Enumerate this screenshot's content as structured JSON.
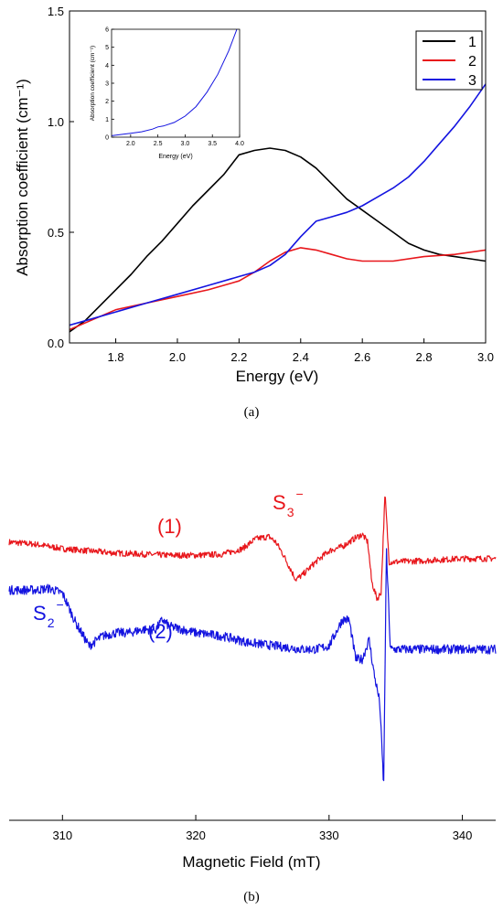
{
  "colors": {
    "series1": "#000000",
    "series2": "#e8161b",
    "series3": "#1414e0"
  },
  "chart_data": [
    {
      "type": "line",
      "panel_label": "(a)",
      "xlabel": "Energy (eV)",
      "ylabel": "Absorption coefficient (cm⁻¹)",
      "xlim": [
        1.65,
        3.0
      ],
      "ylim": [
        0,
        1.5
      ],
      "xticks": [
        "1.8",
        "2.0",
        "2.2",
        "2.4",
        "2.6",
        "2.8",
        "3.0"
      ],
      "yticks": [
        "0.0",
        "0.5",
        "1.0",
        "1.5"
      ],
      "legend": {
        "position": "top-right",
        "entries": [
          "1",
          "2",
          "3"
        ]
      },
      "series": [
        {
          "name": "1",
          "color": "#000000",
          "x": [
            1.65,
            1.7,
            1.75,
            1.8,
            1.85,
            1.9,
            1.95,
            2.0,
            2.05,
            2.1,
            2.15,
            2.2,
            2.25,
            2.3,
            2.35,
            2.4,
            2.45,
            2.5,
            2.55,
            2.6,
            2.65,
            2.7,
            2.75,
            2.8,
            2.85,
            2.9,
            2.95,
            3.0
          ],
          "y": [
            0.05,
            0.1,
            0.17,
            0.24,
            0.31,
            0.39,
            0.46,
            0.54,
            0.62,
            0.69,
            0.76,
            0.85,
            0.87,
            0.88,
            0.87,
            0.84,
            0.79,
            0.72,
            0.65,
            0.6,
            0.55,
            0.5,
            0.45,
            0.42,
            0.4,
            0.39,
            0.38,
            0.37
          ]
        },
        {
          "name": "2",
          "color": "#e8161b",
          "x": [
            1.65,
            1.7,
            1.8,
            1.9,
            2.0,
            2.1,
            2.2,
            2.25,
            2.3,
            2.35,
            2.4,
            2.45,
            2.5,
            2.55,
            2.6,
            2.65,
            2.7,
            2.8,
            2.9,
            3.0
          ],
          "y": [
            0.06,
            0.09,
            0.15,
            0.18,
            0.21,
            0.24,
            0.28,
            0.32,
            0.37,
            0.41,
            0.43,
            0.42,
            0.4,
            0.38,
            0.37,
            0.37,
            0.37,
            0.39,
            0.4,
            0.42
          ]
        },
        {
          "name": "3",
          "color": "#1414e0",
          "x": [
            1.65,
            1.7,
            1.8,
            1.9,
            2.0,
            2.1,
            2.2,
            2.25,
            2.3,
            2.35,
            2.4,
            2.45,
            2.5,
            2.55,
            2.6,
            2.65,
            2.7,
            2.75,
            2.8,
            2.85,
            2.9,
            2.95,
            3.0
          ],
          "y": [
            0.08,
            0.1,
            0.14,
            0.18,
            0.22,
            0.26,
            0.3,
            0.32,
            0.35,
            0.4,
            0.48,
            0.55,
            0.57,
            0.59,
            0.62,
            0.66,
            0.7,
            0.75,
            0.82,
            0.9,
            0.98,
            1.07,
            1.17
          ]
        }
      ],
      "inset": {
        "xlabel": "Energy (eV)",
        "ylabel": "Absorption coefficient (cm⁻¹)",
        "xlim": [
          1.65,
          4.0
        ],
        "ylim": [
          0,
          6
        ],
        "xticks": [
          "2.0",
          "2.5",
          "3.0",
          "3.5",
          "4.0"
        ],
        "yticks": [
          "0",
          "1",
          "2",
          "3",
          "4",
          "5",
          "6"
        ],
        "series": [
          {
            "name": "3",
            "color": "#1414e0",
            "x": [
              1.65,
              1.8,
              2.0,
              2.2,
              2.4,
              2.5,
              2.6,
              2.8,
              3.0,
              3.2,
              3.4,
              3.6,
              3.8,
              3.95
            ],
            "y": [
              0.08,
              0.14,
              0.22,
              0.3,
              0.45,
              0.57,
              0.62,
              0.82,
              1.17,
              1.7,
              2.5,
              3.5,
              4.8,
              6.0
            ]
          }
        ]
      }
    },
    {
      "type": "line",
      "panel_label": "(b)",
      "xlabel": "Magnetic Field (mT)",
      "xlim": [
        306,
        342.5
      ],
      "xticks": [
        "310",
        "320",
        "330",
        "340"
      ],
      "annotations": [
        {
          "base": "S",
          "sub": "3",
          "sup": "−",
          "color": "#e8161b"
        },
        {
          "base": "S",
          "sub": "2",
          "sup": "−",
          "color": "#1414e0"
        },
        {
          "text": "(1)",
          "color": "#e8161b"
        },
        {
          "text": "(2)",
          "color": "#1414e0"
        }
      ],
      "series": [
        {
          "name": "(1)",
          "color": "#e8161b",
          "x": [
            306,
            308,
            310,
            312,
            314,
            316,
            318,
            320,
            322,
            323.5,
            324.5,
            325.5,
            326,
            326.5,
            327,
            327.5,
            328,
            329,
            330,
            331,
            332,
            332.5,
            332.9,
            333.2,
            333.6,
            333.9,
            334.2,
            334.5,
            335,
            337,
            340,
            342.5
          ],
          "y": [
            0.3,
            0.2,
            0.0,
            -0.1,
            -0.2,
            -0.25,
            -0.3,
            -0.3,
            -0.25,
            0.0,
            0.45,
            0.55,
            0.3,
            -0.2,
            -0.8,
            -1.4,
            -1.2,
            -0.6,
            -0.1,
            0.1,
            0.5,
            0.65,
            0.3,
            -1.5,
            -2.3,
            -2.0,
            2.5,
            -0.6,
            -0.6,
            -0.55,
            -0.45,
            -0.45
          ]
        },
        {
          "name": "(2)",
          "color": "#1414e0",
          "x": [
            306,
            308,
            309,
            310,
            311,
            312,
            313,
            314,
            315,
            316,
            317,
            317.5,
            318,
            319,
            320,
            322,
            324,
            326,
            328,
            329,
            330,
            331,
            331.5,
            332,
            332.5,
            333,
            333.4,
            333.8,
            334.1,
            334.3,
            334.6,
            335,
            337,
            340,
            342.5
          ],
          "y": [
            -0.2,
            -0.2,
            -0.15,
            -0.3,
            -1.2,
            -1.9,
            -1.6,
            -1.5,
            -1.5,
            -1.4,
            -1.4,
            -1.1,
            -1.3,
            -1.4,
            -1.5,
            -1.6,
            -1.8,
            -1.9,
            -2.0,
            -2.0,
            -1.9,
            -1.1,
            -1.1,
            -2.3,
            -2.3,
            -1.7,
            -2.8,
            -3.6,
            -6.2,
            1.0,
            -2.0,
            -2.0,
            -2.0,
            -2.0,
            -2.0
          ]
        }
      ]
    }
  ]
}
